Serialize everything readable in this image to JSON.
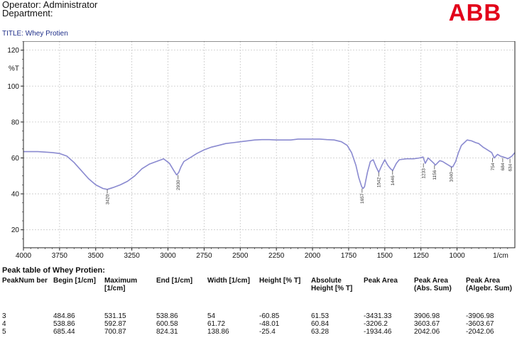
{
  "header": {
    "operator": "Operator: Administrator",
    "department": "Department:",
    "logo_text": "ABB",
    "logo_color": "#e2001a"
  },
  "chart_data": {
    "type": "line",
    "title": "TITLE: Whey Protien",
    "xlabel": "1/cm",
    "ylabel": "%T",
    "xlim": [
      4000,
      600
    ],
    "ylim": [
      10,
      125
    ],
    "grid": true,
    "x_ticks": [
      "4000",
      "3750",
      "3500",
      "3250",
      "3000",
      "2750",
      "2500",
      "2250",
      "2000",
      "1750",
      "1500",
      "1250",
      "1000",
      "1/cm"
    ],
    "y_ticks": [
      "120",
      "%T",
      "100",
      "80",
      "60",
      "40",
      "20"
    ],
    "line_color": "#8a8ad0",
    "series": [
      {
        "x": [
          4000,
          3900,
          3800,
          3750,
          3700,
          3650,
          3600,
          3550,
          3500,
          3450,
          3420,
          3380,
          3330,
          3280,
          3230,
          3180,
          3130,
          3080,
          3030,
          2990,
          2960,
          2940,
          2925,
          2910,
          2890,
          2870,
          2850,
          2800,
          2750,
          2700,
          2650,
          2600,
          2550,
          2500,
          2450,
          2400,
          2350,
          2300,
          2250,
          2200,
          2150,
          2100,
          2050,
          2000,
          1950,
          1900,
          1850,
          1800,
          1760,
          1730,
          1700,
          1680,
          1660,
          1650,
          1640,
          1620,
          1600,
          1580,
          1560,
          1542,
          1520,
          1500,
          1480,
          1460,
          1445,
          1420,
          1400,
          1350,
          1300,
          1260,
          1235,
          1220,
          1200,
          1180,
          1160,
          1150,
          1120,
          1100,
          1080,
          1060,
          1040,
          1030,
          1010,
          990,
          970,
          950,
          930,
          900,
          870,
          850,
          820,
          800,
          780,
          760,
          743,
          720,
          700,
          680,
          660,
          650,
          640,
          620,
          600
        ],
        "y": [
          63.5,
          63.5,
          63,
          62.5,
          61,
          57.5,
          53,
          48.5,
          45,
          43,
          42.5,
          43.5,
          45,
          47,
          50,
          54,
          56.5,
          58,
          59.5,
          57,
          53,
          50.5,
          52,
          55,
          58,
          59,
          60,
          62.5,
          64.5,
          66,
          67,
          68,
          68.5,
          69,
          69.5,
          70,
          70.2,
          70.2,
          70,
          70,
          70,
          70.5,
          70.5,
          70.5,
          70.5,
          70.2,
          70,
          69,
          67,
          63,
          56,
          49,
          44,
          43,
          44,
          52,
          58,
          59,
          55,
          52,
          56,
          59,
          56,
          54,
          53,
          57,
          59,
          59.5,
          59.5,
          60,
          60.5,
          57,
          60,
          58.5,
          57,
          56,
          58.5,
          58,
          57,
          56,
          55,
          55,
          58,
          63,
          67,
          68.5,
          70,
          69.5,
          68.5,
          68,
          66,
          65,
          64,
          63,
          60,
          62,
          61,
          60.5,
          60,
          59.5,
          60,
          61,
          63
        ]
      }
    ],
    "annotations": [
      {
        "x": 3420,
        "y": 42.5,
        "label": "3420"
      },
      {
        "x": 2930,
        "y": 50.5,
        "label": "2930"
      },
      {
        "x": 1657,
        "y": 43,
        "label": "1657"
      },
      {
        "x": 1542,
        "y": 52,
        "label": "1542"
      },
      {
        "x": 1446,
        "y": 53,
        "label": "1446"
      },
      {
        "x": 1233,
        "y": 57,
        "label": "1233"
      },
      {
        "x": 1156,
        "y": 56,
        "label": "1156"
      },
      {
        "x": 1040,
        "y": 55,
        "label": "1040"
      },
      {
        "x": 754,
        "y": 60,
        "label": "754"
      },
      {
        "x": 684,
        "y": 60,
        "label": "684"
      },
      {
        "x": 634,
        "y": 59.5,
        "label": "634"
      }
    ]
  },
  "peak_table": {
    "title": "Peak table of Whey Protien:",
    "columns": [
      "PeakNum ber",
      "Begin [1/cm]",
      "Maximum [1/cm]",
      "End [1/cm]",
      "Width [1/cm]",
      "Height [% T]",
      "Absolute Height [% T]",
      "Peak Area",
      "Peak Area (Abs. Sum)",
      "Peak Area (Algebr. Sum)"
    ],
    "rows": [
      [
        "3",
        "484.86",
        "531.15",
        "538.86",
        "54",
        "-60.85",
        "61.53",
        "-3431.33",
        "3906.98",
        "-3906.98"
      ],
      [
        "4",
        "538.86",
        "592.87",
        "600.58",
        "61.72",
        "-48.01",
        "60.84",
        "-3206.2",
        "3603.67",
        "-3603.67"
      ],
      [
        "5",
        "685.44",
        "700.87",
        "824.31",
        "138.86",
        "-25.4",
        "63.28",
        "-1934.46",
        "2042.06",
        "-2042.06"
      ]
    ]
  }
}
